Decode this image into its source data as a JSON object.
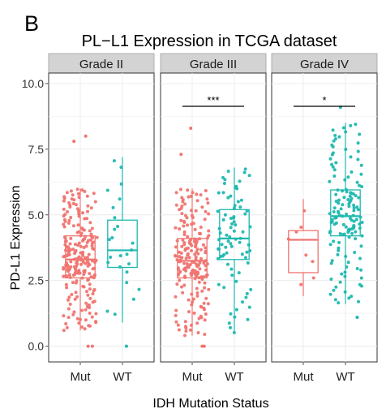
{
  "panel_letter": "B",
  "colors": {
    "mut": "#f07470",
    "wt": "#1fb8b0",
    "strip": "#d3d3d3",
    "grid": "#ececec"
  },
  "chart_data": {
    "type": "box-jitter",
    "title": "PL−L1 Expression in TCGA dataset",
    "xlabel": "IDH Mutation Status",
    "ylabel": "PD-L1 Expression",
    "ylim": [
      -0.6,
      10.4
    ],
    "yticks": [
      "0.0",
      "2.5",
      "5.0",
      "7.5",
      "10.0"
    ],
    "categories": [
      "Mut",
      "WT"
    ],
    "grid": true,
    "facets": [
      {
        "label": "Grade II",
        "boxes": [
          {
            "group": "Mut",
            "q1": 2.6,
            "median": 3.3,
            "q3": 4.2,
            "whisker_low": 0.6,
            "whisker_high": 6.0,
            "n": 220,
            "outliers": [
              0.0,
              0.0,
              7.8,
              8.0
            ]
          },
          {
            "group": "WT",
            "q1": 3.0,
            "median": 3.65,
            "q3": 4.8,
            "whisker_low": 0.9,
            "whisker_high": 7.2,
            "n": 25,
            "outliers": [
              0.0
            ]
          }
        ],
        "significance": ""
      },
      {
        "label": "Grade III",
        "boxes": [
          {
            "group": "Mut",
            "q1": 2.6,
            "median": 3.25,
            "q3": 4.1,
            "whisker_low": 0.4,
            "whisker_high": 6.0,
            "n": 200,
            "outliers": [
              0.0,
              0.0,
              7.3,
              8.3
            ]
          },
          {
            "group": "WT",
            "q1": 3.3,
            "median": 4.1,
            "q3": 5.2,
            "whisker_low": 0.5,
            "whisker_high": 6.8,
            "n": 80,
            "outliers": []
          }
        ],
        "significance": "***"
      },
      {
        "label": "Grade IV",
        "boxes": [
          {
            "group": "Mut",
            "q1": 2.8,
            "median": 4.05,
            "q3": 4.4,
            "whisker_low": 1.9,
            "whisker_high": 5.6,
            "n": 8,
            "outliers": []
          },
          {
            "group": "WT",
            "q1": 4.2,
            "median": 4.95,
            "q3": 5.95,
            "whisker_low": 1.6,
            "whisker_high": 8.5,
            "n": 140,
            "outliers": [
              1.1,
              9.1
            ]
          }
        ],
        "significance": "*"
      }
    ]
  }
}
